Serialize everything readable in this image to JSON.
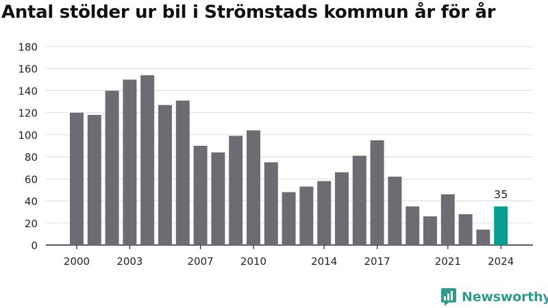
{
  "chart_data": {
    "type": "bar",
    "title": "Antal stölder ur bil i Strömstads kommun år för år",
    "xlabel": "",
    "ylabel": "",
    "ylim": [
      0,
      180
    ],
    "yticks": [
      0,
      20,
      40,
      60,
      80,
      100,
      120,
      140,
      160,
      180
    ],
    "xtick_labels": [
      "2000",
      "2003",
      "2007",
      "2010",
      "2014",
      "2017",
      "2021",
      "2024"
    ],
    "categories": [
      "2000",
      "2001",
      "2002",
      "2003",
      "2004",
      "2005",
      "2006",
      "2007",
      "2008",
      "2009",
      "2010",
      "2011",
      "2012",
      "2013",
      "2014",
      "2015",
      "2016",
      "2017",
      "2018",
      "2019",
      "2020",
      "2021",
      "2022",
      "2023",
      "2024"
    ],
    "values": [
      120,
      118,
      140,
      150,
      154,
      127,
      131,
      90,
      84,
      99,
      104,
      75,
      48,
      53,
      58,
      66,
      81,
      95,
      62,
      35,
      26,
      46,
      28,
      14,
      35
    ],
    "highlight": {
      "category": "2024",
      "label": "35"
    },
    "colors": {
      "bar": "#6d6c72",
      "highlight": "#069e8f",
      "grid": "#dddddd"
    },
    "grid": true,
    "legend": "none"
  },
  "brand": {
    "name": "Newsworthy",
    "icon": "newsworthy-logo-icon",
    "color": "#2e9b8f"
  }
}
